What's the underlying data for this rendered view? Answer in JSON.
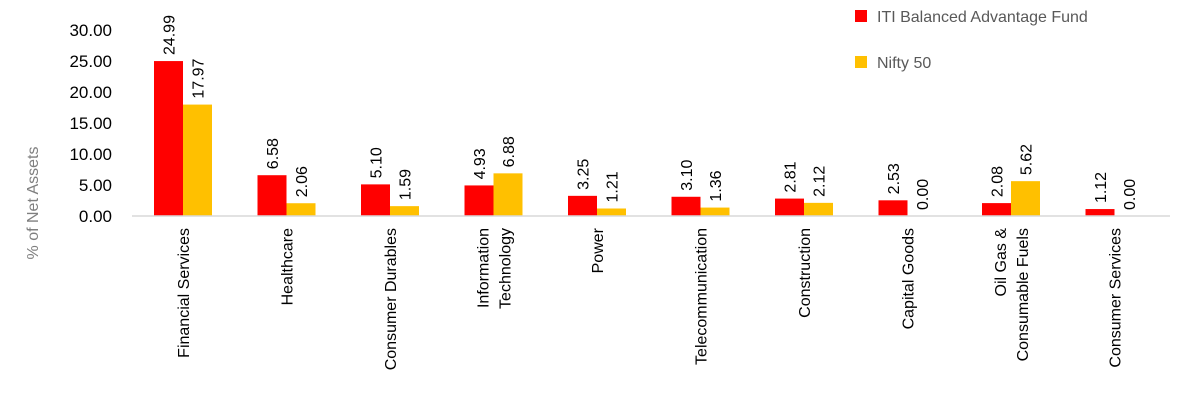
{
  "chart_data": {
    "type": "bar",
    "ylabel": "% of Net Assets",
    "ylim": [
      0,
      30
    ],
    "yticks": [
      "0.00",
      "5.00",
      "10.00",
      "15.00",
      "20.00",
      "25.00",
      "30.00"
    ],
    "grid": false,
    "legend_position": "top-right",
    "categories": [
      [
        "Financial Services"
      ],
      [
        "Healthcare"
      ],
      [
        "Consumer Durables"
      ],
      [
        "Information",
        "Technology"
      ],
      [
        "Power"
      ],
      [
        "Telecommunication"
      ],
      [
        "Construction"
      ],
      [
        "Capital Goods"
      ],
      [
        "Oil Gas &",
        "Consumable Fuels"
      ],
      [
        "Consumer Services"
      ]
    ],
    "series": [
      {
        "name": "ITI Balanced Advantage Fund",
        "color": "#ff0000",
        "values": [
          24.99,
          6.58,
          5.1,
          4.93,
          3.25,
          3.1,
          2.81,
          2.53,
          2.08,
          1.12
        ],
        "labels": [
          "24.99",
          "6.58",
          "5.10",
          "4.93",
          "3.25",
          "3.10",
          "2.81",
          "2.53",
          "2.08",
          "1.12"
        ]
      },
      {
        "name": "Nifty 50",
        "color": "#ffc000",
        "values": [
          17.97,
          2.06,
          1.59,
          6.88,
          1.21,
          1.36,
          2.12,
          0.0,
          5.62,
          0.0
        ],
        "labels": [
          "17.97",
          "2.06",
          "1.59",
          "6.88",
          "1.21",
          "1.36",
          "2.12",
          "0.00",
          "5.62",
          "0.00"
        ]
      }
    ]
  }
}
